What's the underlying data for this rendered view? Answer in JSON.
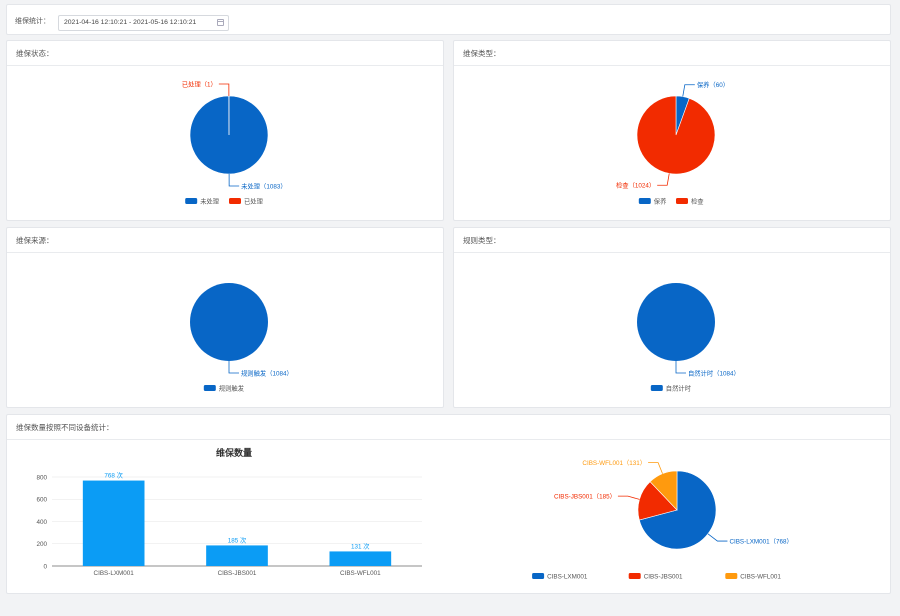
{
  "filter": {
    "label": "维保统计：",
    "date_range": "2021-04-16 12:10:21 - 2021-05-16 12:10:21"
  },
  "colors": {
    "blue": "#0866c6",
    "red": "#f22b00",
    "orange": "#ff9a0e",
    "bar": "#0b9cf5"
  },
  "panels": {
    "status": {
      "title": "维保状态：",
      "slices": [
        {
          "name": "未处理",
          "value": 1083,
          "label": "未处理（1083）",
          "color": "#0866c6"
        },
        {
          "name": "已处理",
          "value": 1,
          "label": "已处理（1）",
          "color": "#f22b00"
        }
      ],
      "legend": [
        "未处理",
        "已处理"
      ]
    },
    "type": {
      "title": "维保类型：",
      "slices": [
        {
          "name": "保养",
          "value": 60,
          "label": "保养（60）",
          "color": "#0866c6"
        },
        {
          "name": "检查",
          "value": 1024,
          "label": "检查（1024）",
          "color": "#f22b00"
        }
      ],
      "legend": [
        "保养",
        "检查"
      ]
    },
    "source": {
      "title": "维保来源：",
      "slices": [
        {
          "name": "规则触发",
          "value": 1084,
          "label": "规则触发（1084）",
          "color": "#0866c6"
        }
      ],
      "legend": [
        "规则触发"
      ]
    },
    "rule": {
      "title": "规则类型：",
      "slices": [
        {
          "name": "自然计时",
          "value": 1084,
          "label": "自然计时（1084）",
          "color": "#0866c6"
        }
      ],
      "legend": [
        "自然计时"
      ]
    },
    "device": {
      "title": "维保数量按照不同设备统计："
    }
  },
  "chart_data": [
    {
      "type": "bar",
      "title": "维保数量",
      "categories": [
        "CIBS-LXM001",
        "CIBS-JBS001",
        "CIBS-WFL001"
      ],
      "values": [
        768,
        185,
        131
      ],
      "data_labels": [
        "768 次",
        "185 次",
        "131 次"
      ],
      "ylim": [
        0,
        800
      ],
      "yticks": [
        "0",
        "200",
        "400",
        "600",
        "800"
      ],
      "grid": true
    },
    {
      "type": "pie",
      "slices": [
        {
          "name": "CIBS-LXM001",
          "value": 768,
          "label": "CIBS-LXM001（768）",
          "color": "#0866c6"
        },
        {
          "name": "CIBS-JBS001",
          "value": 185,
          "label": "CIBS-JBS001（185）",
          "color": "#f22b00"
        },
        {
          "name": "CIBS-WFL001",
          "value": 131,
          "label": "CIBS-WFL001（131）",
          "color": "#ff9a0e"
        }
      ],
      "legend": [
        "CIBS-LXM001",
        "CIBS-JBS001",
        "CIBS-WFL001"
      ]
    }
  ]
}
